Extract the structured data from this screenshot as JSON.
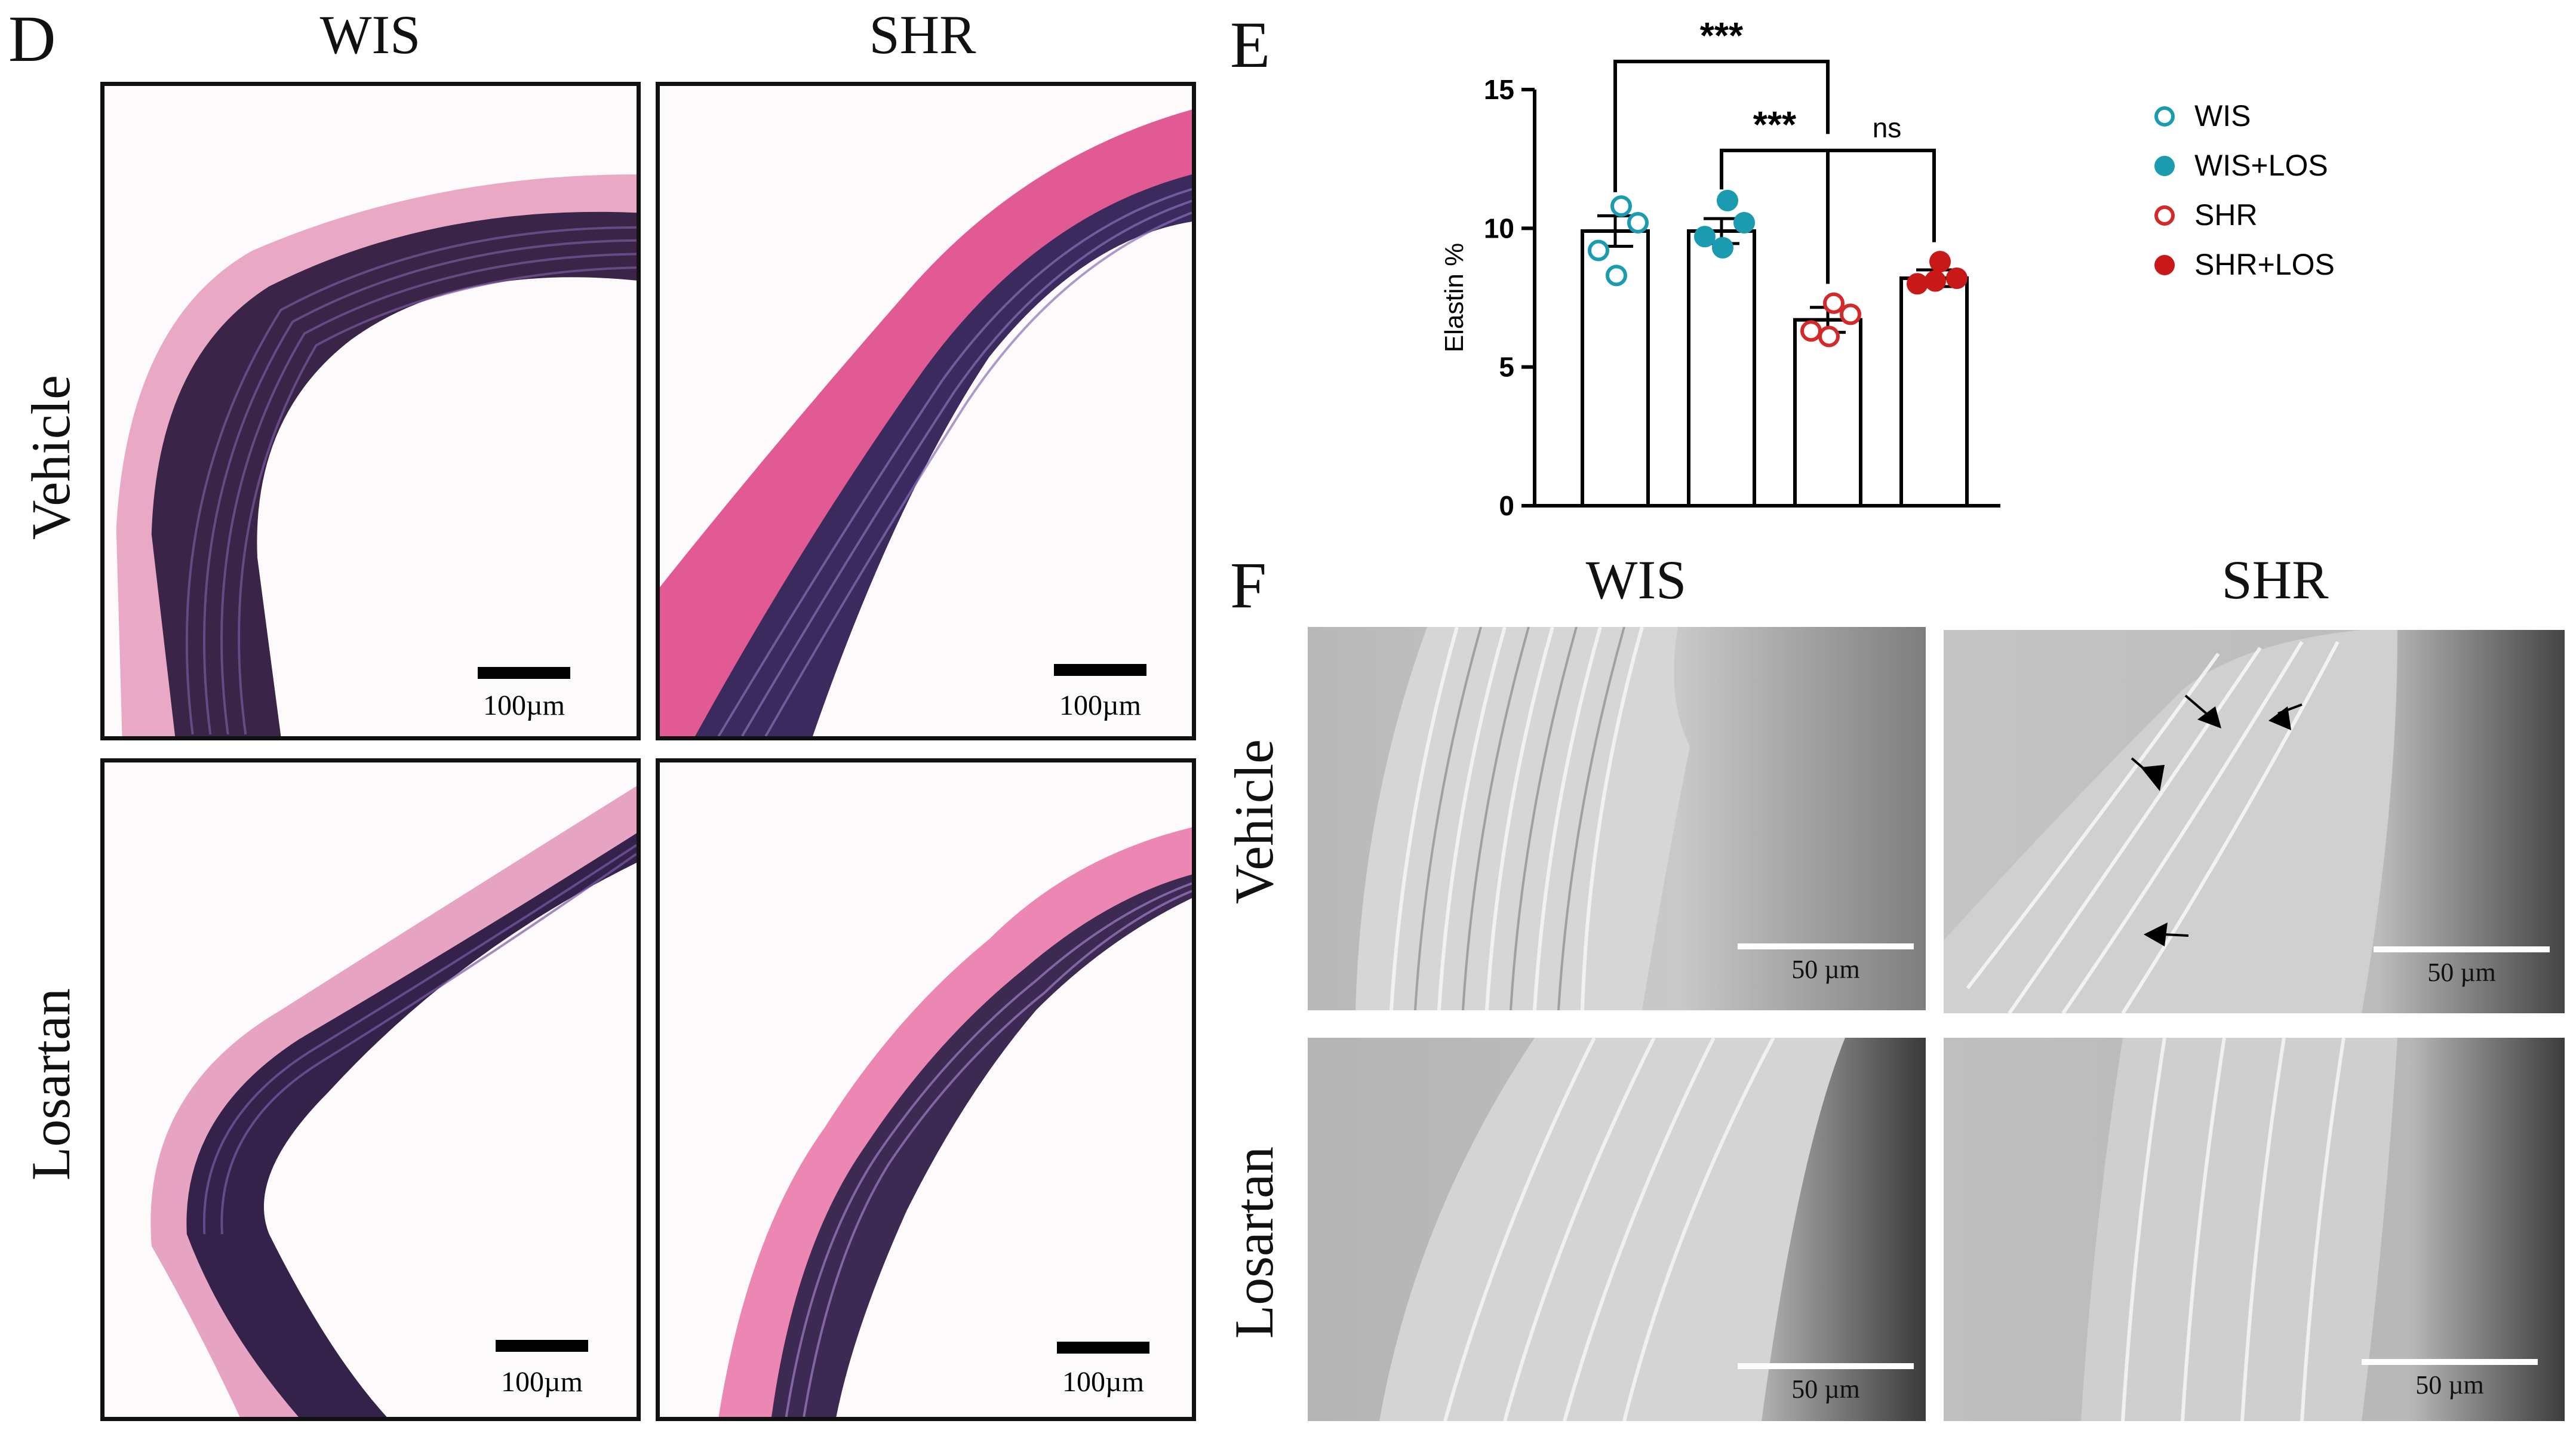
{
  "panel_d": {
    "letter": "D",
    "columns": [
      "WIS",
      "SHR"
    ],
    "rows": [
      "Vehicle",
      "Losartan"
    ],
    "scale_label": "100µm"
  },
  "panel_e": {
    "letter": "E"
  },
  "panel_f": {
    "letter": "F",
    "columns": [
      "WIS",
      "SHR"
    ],
    "rows": [
      "Vehicle",
      "Losartan"
    ],
    "scale_label": "50 µm"
  },
  "chart_data": {
    "type": "bar",
    "categories": [
      "WIS",
      "WIS+LOS",
      "SHR",
      "SHR+LOS"
    ],
    "ylabel": "Elastin %",
    "ylim": [
      0,
      15
    ],
    "yticks": [
      0,
      5,
      10,
      15
    ],
    "series": [
      {
        "name": "Elastin %",
        "values": [
          9.9,
          9.9,
          6.7,
          8.2
        ],
        "sem": [
          0.55,
          0.45,
          0.45,
          0.3
        ],
        "points": [
          [
            10.8,
            10.2,
            9.2,
            8.3
          ],
          [
            11.0,
            10.2,
            9.7,
            9.3
          ],
          [
            7.3,
            6.9,
            6.3,
            6.1
          ],
          [
            8.8,
            8.2,
            8.0,
            8.1
          ]
        ]
      }
    ],
    "legend": [
      {
        "name": "WIS",
        "color": "#1a9bb0",
        "filled": false
      },
      {
        "name": "WIS+LOS",
        "color": "#1a9bb0",
        "filled": true
      },
      {
        "name": "SHR",
        "color": "#d22a2a",
        "filled": false
      },
      {
        "name": "SHR+LOS",
        "color": "#c81818",
        "filled": true
      }
    ],
    "legend_position": "right",
    "grid": false,
    "annotations": [
      {
        "from": "WIS",
        "to": "SHR",
        "text": "***"
      },
      {
        "from": "WIS+LOS",
        "to": "SHR",
        "text": "***"
      },
      {
        "from": "SHR",
        "to": "SHR+LOS",
        "text": "ns"
      }
    ]
  }
}
